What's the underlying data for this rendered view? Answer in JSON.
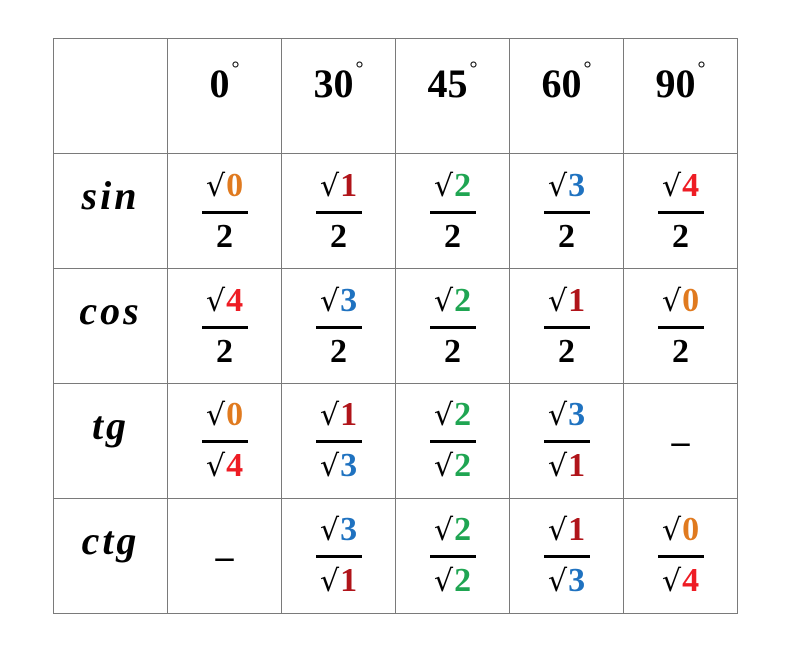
{
  "sqrt_symbol": "√",
  "degree_symbol": "°",
  "digit_colors": {
    "0": "#e07a1f",
    "1": "#b0141a",
    "2": "#1fa552",
    "3": "#1f72c0",
    "4": "#ee1c24"
  },
  "headers": [
    "0",
    "30",
    "45",
    "60",
    "90"
  ],
  "rows": [
    {
      "label": "sin",
      "cells": [
        {
          "num": "0",
          "num_sqrt": true,
          "den": "2",
          "den_sqrt": false
        },
        {
          "num": "1",
          "num_sqrt": true,
          "den": "2",
          "den_sqrt": false
        },
        {
          "num": "2",
          "num_sqrt": true,
          "den": "2",
          "den_sqrt": false
        },
        {
          "num": "3",
          "num_sqrt": true,
          "den": "2",
          "den_sqrt": false
        },
        {
          "num": "4",
          "num_sqrt": true,
          "den": "2",
          "den_sqrt": false
        }
      ]
    },
    {
      "label": "cos",
      "cells": [
        {
          "num": "4",
          "num_sqrt": true,
          "den": "2",
          "den_sqrt": false
        },
        {
          "num": "3",
          "num_sqrt": true,
          "den": "2",
          "den_sqrt": false
        },
        {
          "num": "2",
          "num_sqrt": true,
          "den": "2",
          "den_sqrt": false
        },
        {
          "num": "1",
          "num_sqrt": true,
          "den": "2",
          "den_sqrt": false
        },
        {
          "num": "0",
          "num_sqrt": true,
          "den": "2",
          "den_sqrt": false
        }
      ]
    },
    {
      "label": "tg",
      "cells": [
        {
          "num": "0",
          "num_sqrt": true,
          "den": "4",
          "den_sqrt": true
        },
        {
          "num": "1",
          "num_sqrt": true,
          "den": "3",
          "den_sqrt": true
        },
        {
          "num": "2",
          "num_sqrt": true,
          "den": "2",
          "den_sqrt": true
        },
        {
          "num": "3",
          "num_sqrt": true,
          "den": "1",
          "den_sqrt": true
        },
        {
          "dash": "–"
        }
      ]
    },
    {
      "label": "ctg",
      "cells": [
        {
          "dash": "–"
        },
        {
          "num": "3",
          "num_sqrt": true,
          "den": "1",
          "den_sqrt": true
        },
        {
          "num": "2",
          "num_sqrt": true,
          "den": "2",
          "den_sqrt": true
        },
        {
          "num": "1",
          "num_sqrt": true,
          "den": "3",
          "den_sqrt": true
        },
        {
          "num": "0",
          "num_sqrt": true,
          "den": "4",
          "den_sqrt": true
        }
      ]
    }
  ]
}
